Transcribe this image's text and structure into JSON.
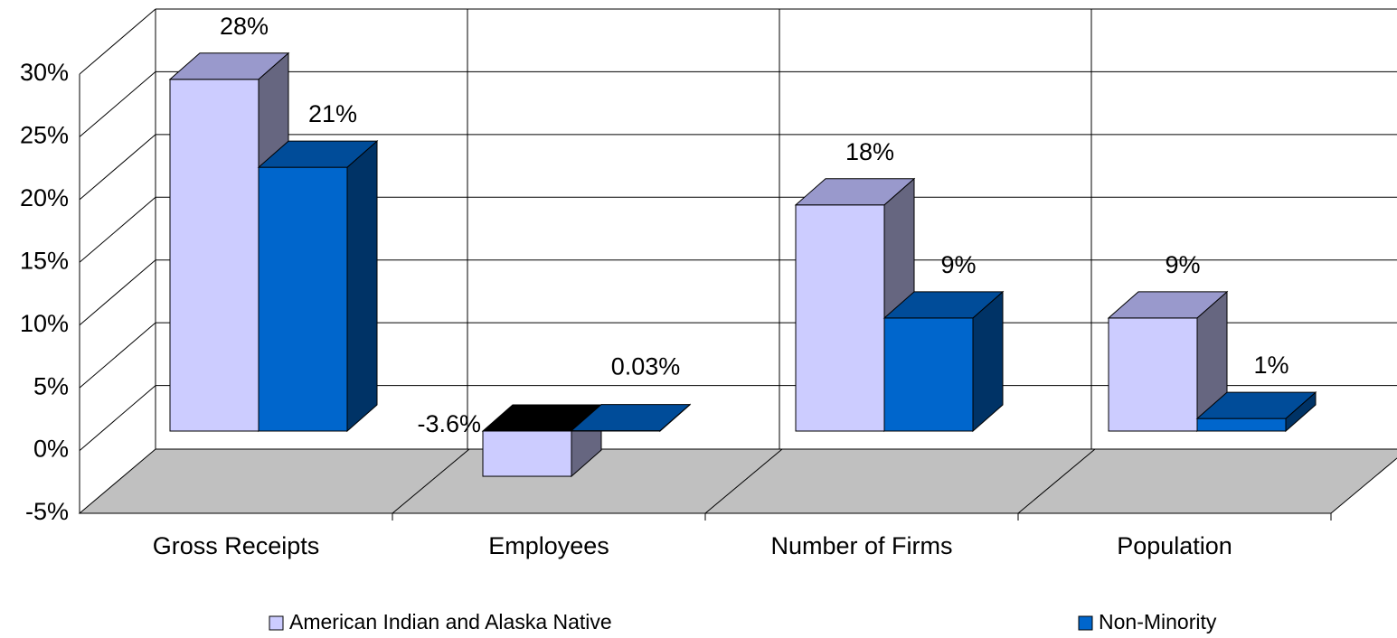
{
  "chart_data": {
    "type": "bar3d",
    "categories": [
      "Gross Receipts",
      "Employees",
      "Number of Firms",
      "Population"
    ],
    "series": [
      {
        "name": "American Indian and Alaska Native",
        "color": "#ccccff",
        "values": [
          28,
          -3.6,
          18,
          9
        ],
        "value_labels": [
          "28%",
          "-3.6%",
          "18%",
          "9%"
        ]
      },
      {
        "name": "Non-Minority",
        "color": "#0066cc",
        "values": [
          21,
          0.03,
          9,
          1
        ],
        "value_labels": [
          "21%",
          "0.03%",
          "9%",
          "1%"
        ]
      }
    ],
    "ylim": [
      -5,
      30
    ],
    "yticks": [
      {
        "value": -5,
        "label": "-5%"
      },
      {
        "value": 0,
        "label": "0%"
      },
      {
        "value": 5,
        "label": "5%"
      },
      {
        "value": 10,
        "label": "10%"
      },
      {
        "value": 15,
        "label": "15%"
      },
      {
        "value": 20,
        "label": "20%"
      },
      {
        "value": 25,
        "label": "25%"
      },
      {
        "value": 30,
        "label": "30%"
      }
    ],
    "grid": true,
    "legend": "bottom"
  }
}
